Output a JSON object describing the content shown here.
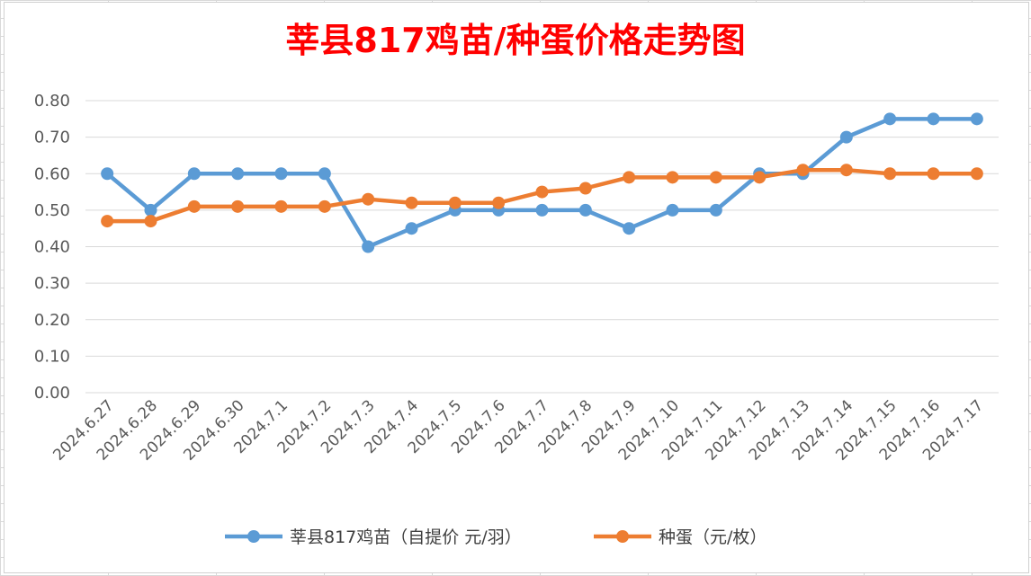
{
  "chart_data": {
    "type": "line",
    "title": "莘县817鸡苗/种蛋价格走势图",
    "xlabel": "",
    "ylabel": "",
    "ylim": [
      0,
      0.8
    ],
    "y_ticks": [
      "0.00",
      "0.10",
      "0.20",
      "0.30",
      "0.40",
      "0.50",
      "0.60",
      "0.70",
      "0.80"
    ],
    "y_tick_values": [
      0,
      0.1,
      0.2,
      0.3,
      0.4,
      0.5,
      0.6,
      0.7,
      0.8
    ],
    "grid": "horizontal",
    "legend_position": "bottom",
    "categories": [
      "2024.6.27",
      "2024.6.28",
      "2024.6.29",
      "2024.6.30",
      "2024.7.1",
      "2024.7.2",
      "2024.7.3",
      "2024.7.4",
      "2024.7.5",
      "2024.7.6",
      "2024.7.7",
      "2024.7.8",
      "2024.7.9",
      "2024.7.10",
      "2024.7.11",
      "2024.7.12",
      "2024.7.13",
      "2024.7.14",
      "2024.7.15",
      "2024.7.16",
      "2024.7.17"
    ],
    "series": [
      {
        "name": "莘县817鸡苗（自提价 元/羽）",
        "color": "#5b9bd5",
        "values": [
          0.6,
          0.5,
          0.6,
          0.6,
          0.6,
          0.6,
          0.4,
          0.45,
          0.5,
          0.5,
          0.5,
          0.5,
          0.45,
          0.5,
          0.5,
          0.6,
          0.6,
          0.7,
          0.75,
          0.75,
          0.75
        ]
      },
      {
        "name": "种蛋（元/枚）",
        "color": "#ed7d31",
        "values": [
          0.47,
          0.47,
          0.51,
          0.51,
          0.51,
          0.51,
          0.53,
          0.52,
          0.52,
          0.52,
          0.55,
          0.56,
          0.59,
          0.59,
          0.59,
          0.59,
          0.61,
          0.61,
          0.6,
          0.6,
          0.6
        ]
      }
    ],
    "title_color": "#ff0000"
  }
}
